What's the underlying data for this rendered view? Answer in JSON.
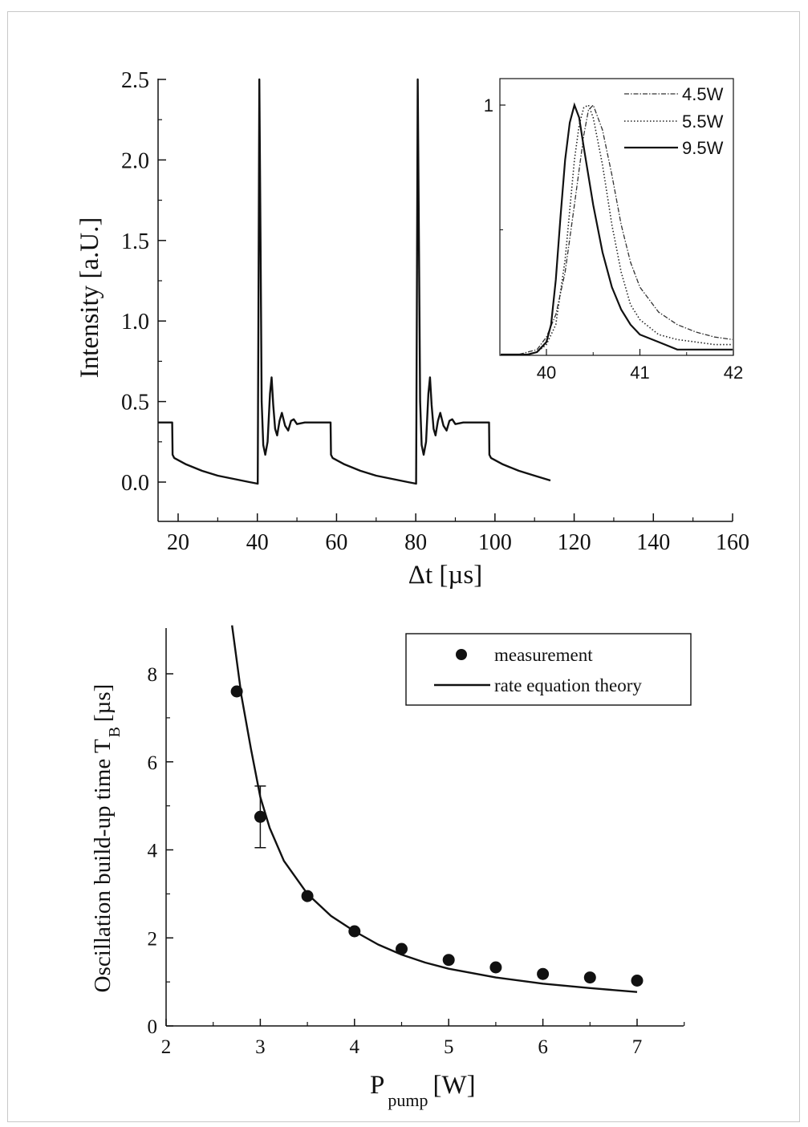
{
  "chart_data": [
    {
      "type": "line",
      "xlabel": "Δt [µs]",
      "ylabel": "Intensity [a.U.]",
      "xlim": [
        15,
        160
      ],
      "ylim": [
        -0.25,
        2.5
      ],
      "xticks": [
        "20",
        "40",
        "60",
        "80",
        "100",
        "120",
        "140",
        "160"
      ],
      "yticks": [
        "0.0",
        "0.5",
        "1.0",
        "1.5",
        "2.0",
        "2.5"
      ],
      "series": [
        {
          "x": [
            15,
            18.5,
            18.6,
            19,
            22,
            26,
            30,
            34,
            38,
            40.1,
            40.3,
            40.5,
            40.8,
            41.1,
            41.5,
            42,
            42.6,
            43.2,
            43.6,
            44,
            44.5,
            45,
            45.6,
            46.2,
            47,
            47.8,
            48.5,
            49.2,
            50,
            52,
            55,
            58.5,
            58.6,
            59,
            62,
            66,
            70,
            74,
            78,
            80.1,
            80.3,
            80.5,
            80.8,
            81.1,
            81.5,
            82,
            82.6,
            83.2,
            83.6,
            84,
            84.5,
            85,
            85.6,
            86.2,
            87,
            87.8,
            88.5,
            89.2,
            90,
            92,
            95,
            98.5,
            98.6,
            99,
            102,
            106,
            110,
            114
          ],
          "y": [
            0.37,
            0.37,
            0.17,
            0.15,
            0.11,
            0.07,
            0.04,
            0.02,
            0.0,
            -0.01,
            1.2,
            2.5,
            1.5,
            0.5,
            0.23,
            0.17,
            0.25,
            0.55,
            0.65,
            0.48,
            0.33,
            0.29,
            0.38,
            0.43,
            0.35,
            0.32,
            0.38,
            0.39,
            0.36,
            0.37,
            0.37,
            0.37,
            0.17,
            0.15,
            0.11,
            0.07,
            0.04,
            0.02,
            0.0,
            -0.01,
            1.2,
            2.5,
            1.5,
            0.5,
            0.23,
            0.17,
            0.25,
            0.55,
            0.65,
            0.48,
            0.33,
            0.29,
            0.38,
            0.43,
            0.35,
            0.32,
            0.38,
            0.39,
            0.36,
            0.37,
            0.37,
            0.37,
            0.17,
            0.15,
            0.11,
            0.07,
            0.04,
            0.01
          ]
        }
      ],
      "inset": {
        "type": "line",
        "xlim": [
          39.5,
          42
        ],
        "ylim": [
          0,
          1.05
        ],
        "xticks": [
          "40",
          "41",
          "42"
        ],
        "yticks": [
          "1"
        ],
        "series": [
          {
            "name": "4.5W",
            "style": "dash-dot",
            "x": [
              39.5,
              39.7,
              39.9,
              40.0,
              40.1,
              40.2,
              40.3,
              40.4,
              40.45,
              40.5,
              40.6,
              40.7,
              40.8,
              40.9,
              41.0,
              41.2,
              41.4,
              41.6,
              41.8,
              42.0
            ],
            "y": [
              0.0,
              0.0,
              0.02,
              0.07,
              0.16,
              0.33,
              0.6,
              0.88,
              0.98,
              1.0,
              0.9,
              0.72,
              0.52,
              0.37,
              0.27,
              0.17,
              0.12,
              0.09,
              0.07,
              0.06
            ]
          },
          {
            "name": "5.5W",
            "style": "dotted",
            "x": [
              39.5,
              39.8,
              39.9,
              40.0,
              40.1,
              40.2,
              40.3,
              40.35,
              40.4,
              40.45,
              40.5,
              40.6,
              40.7,
              40.8,
              40.9,
              41.0,
              41.2,
              41.4,
              41.6,
              41.8,
              42.0
            ],
            "y": [
              0.0,
              0.0,
              0.01,
              0.04,
              0.12,
              0.38,
              0.78,
              0.92,
              0.99,
              1.0,
              0.95,
              0.76,
              0.52,
              0.33,
              0.2,
              0.14,
              0.08,
              0.06,
              0.05,
              0.04,
              0.04
            ]
          },
          {
            "name": "9.5W",
            "style": "solid",
            "x": [
              39.5,
              39.8,
              39.9,
              40.0,
              40.05,
              40.1,
              40.15,
              40.2,
              40.25,
              40.3,
              40.35,
              40.4,
              40.5,
              40.6,
              40.7,
              40.8,
              40.9,
              41.0,
              41.2,
              41.4,
              41.6,
              42.0
            ],
            "y": [
              0.0,
              0.0,
              0.01,
              0.05,
              0.12,
              0.3,
              0.55,
              0.78,
              0.93,
              1.0,
              0.95,
              0.83,
              0.6,
              0.41,
              0.27,
              0.18,
              0.12,
              0.08,
              0.05,
              0.02,
              0.02,
              0.02
            ]
          }
        ]
      }
    },
    {
      "type": "scatter",
      "xlabel_main": "P",
      "xlabel_sub": "pump",
      "xlabel_unit": "[W]",
      "ylabel_main": "Oscillation build-up time T",
      "ylabel_sub": "B",
      "ylabel_unit": "[µs]",
      "xlim": [
        2,
        7.5
      ],
      "ylim": [
        0,
        9.1
      ],
      "xticks": [
        "2",
        "3",
        "4",
        "5",
        "6",
        "7"
      ],
      "yticks": [
        "0",
        "2",
        "4",
        "6",
        "8"
      ],
      "series": [
        {
          "name": "measurement",
          "marker": "circle",
          "x": [
            2.75,
            3.0,
            3.5,
            4.0,
            4.5,
            5.0,
            5.5,
            6.0,
            6.5,
            7.0
          ],
          "y": [
            7.6,
            4.75,
            2.95,
            2.15,
            1.75,
            1.5,
            1.33,
            1.18,
            1.1,
            1.03
          ],
          "error_bars": [
            {
              "x": 3.0,
              "low": 4.05,
              "high": 5.45
            }
          ]
        },
        {
          "name": "rate equation theory",
          "line": "solid",
          "x": [
            2.7,
            2.8,
            2.9,
            3.0,
            3.1,
            3.25,
            3.5,
            3.75,
            4.0,
            4.25,
            4.5,
            4.75,
            5.0,
            5.5,
            6.0,
            6.5,
            7.0
          ],
          "y": [
            9.1,
            7.5,
            6.3,
            5.2,
            4.5,
            3.75,
            3.0,
            2.5,
            2.15,
            1.85,
            1.62,
            1.44,
            1.3,
            1.1,
            0.96,
            0.86,
            0.77
          ]
        }
      ]
    }
  ]
}
